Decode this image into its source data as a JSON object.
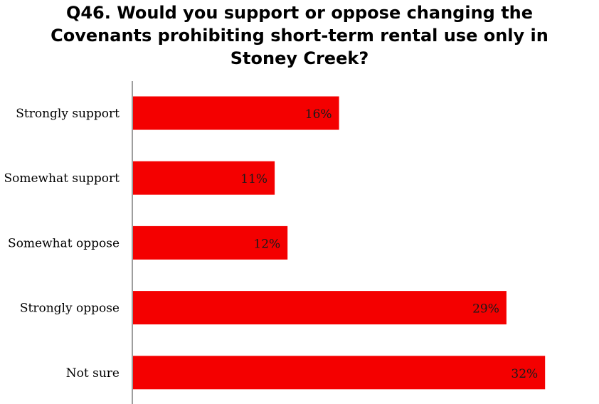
{
  "colors": {
    "bar": "#f40000",
    "axis": "#7f7f7f"
  },
  "chart_data": {
    "type": "bar",
    "orientation": "horizontal",
    "title_lines": [
      "Q46. Would you support or oppose changing the",
      "Covenants prohibiting short-term rental use only in",
      "Stoney Creek?"
    ],
    "categories": [
      "Strongly support",
      "Somewhat support",
      "Somewhat oppose",
      "Strongly oppose",
      "Not sure"
    ],
    "values": [
      16,
      11,
      12,
      29,
      32
    ],
    "data_labels": [
      "16%",
      "11%",
      "12%",
      "29%",
      "32%"
    ],
    "unit": "%",
    "xlim": [
      0,
      35
    ],
    "grid": false,
    "legend": "none"
  }
}
